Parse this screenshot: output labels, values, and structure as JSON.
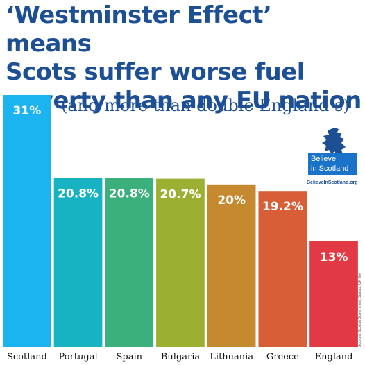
{
  "title_lines": [
    "‘Westminster Effect’ means",
    "Scots suffer worse fuel",
    "poverty than any EU nation"
  ],
  "subtitle": "(and more than double England’s)",
  "logo": {
    "line1": "Believe",
    "line2": "in Scotland",
    "url": "BelieveInScotland.org",
    "color": "#1a73c8"
  },
  "source": "Sources: Scottish Government, Statista, UK Gov",
  "chart_data": {
    "type": "bar",
    "categories": [
      "Scotland",
      "Portugal",
      "Spain",
      "Bulgaria",
      "Lithuania",
      "Greece",
      "England"
    ],
    "values": [
      31,
      20.8,
      20.8,
      20.7,
      20,
      19.2,
      13
    ],
    "labels": [
      "31%",
      "20.8%",
      "20.8%",
      "20.7%",
      "20%",
      "19.2%",
      "13%"
    ],
    "colors": [
      "#1cb4f0",
      "#17b3c2",
      "#3cb07c",
      "#9bb032",
      "#c58a2f",
      "#d85e38",
      "#e23a45"
    ],
    "ylim": [
      0,
      31
    ],
    "grid": false,
    "legend": "none"
  }
}
